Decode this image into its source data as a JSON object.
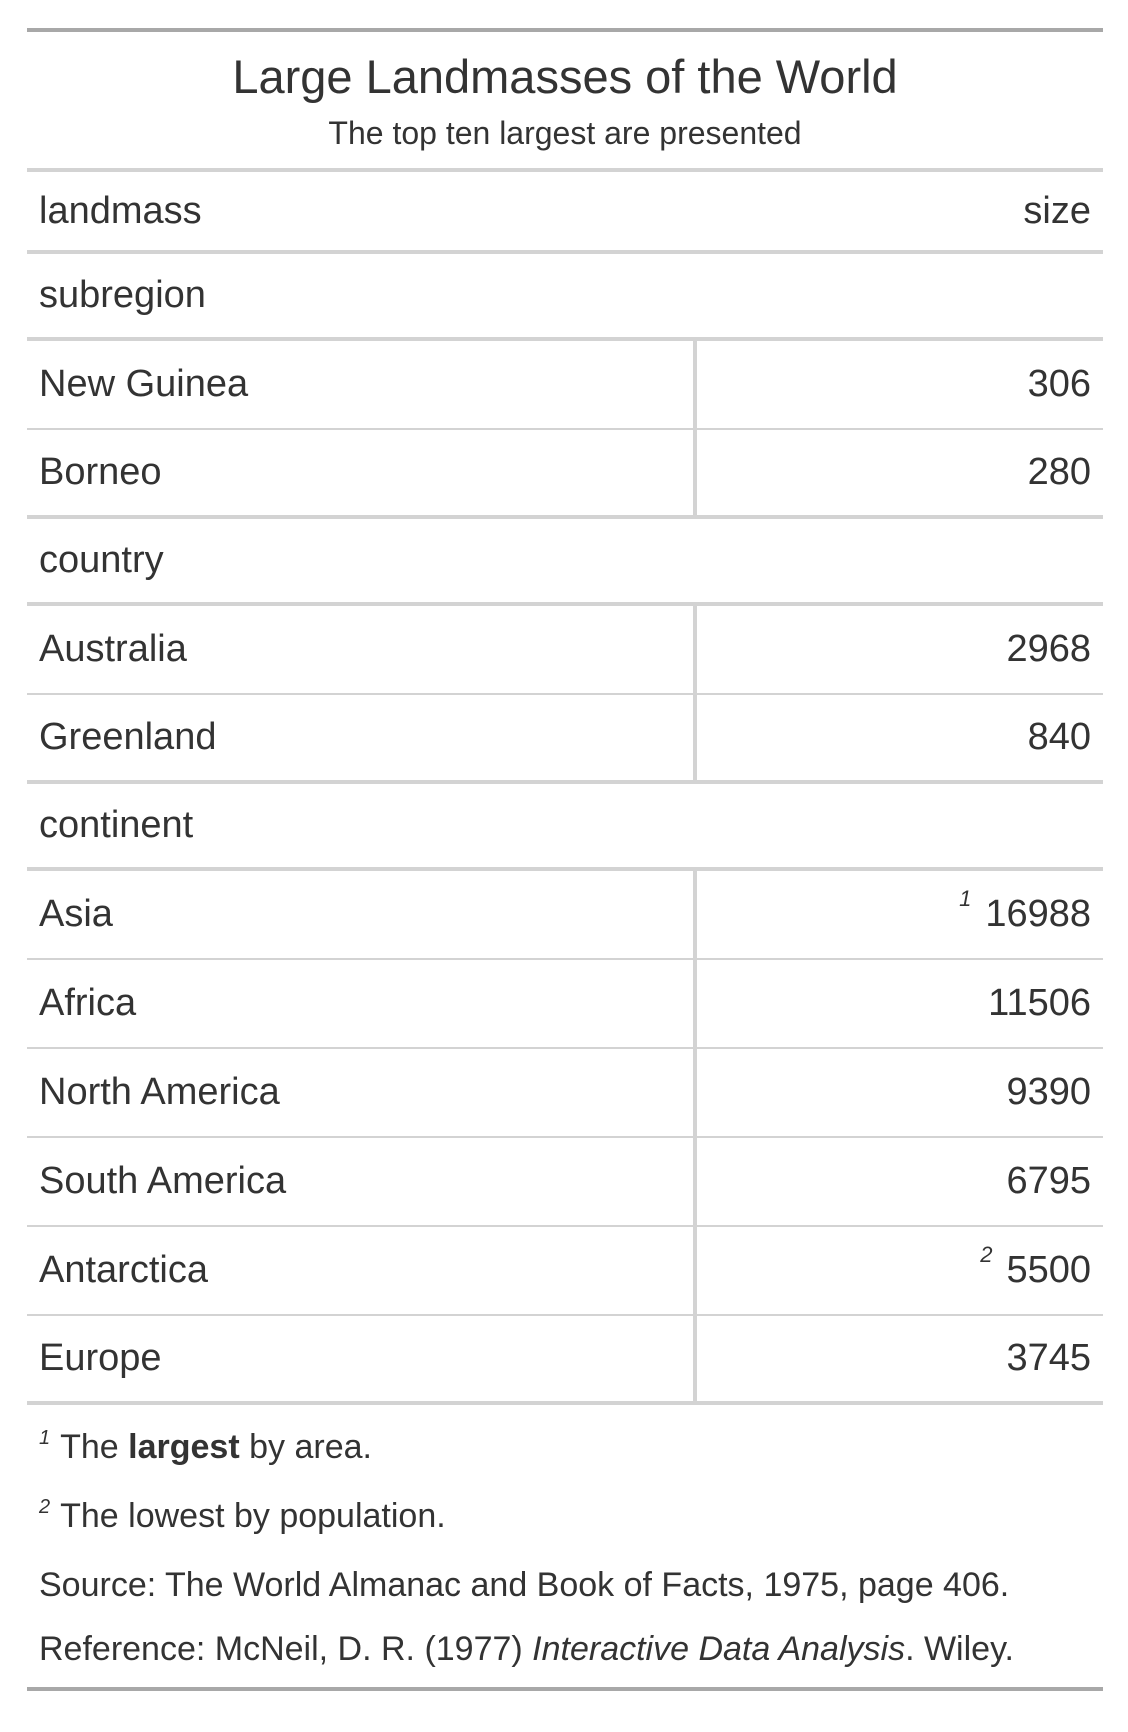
{
  "title": "Large Landmasses of the World",
  "subtitle": "The top ten largest are presented",
  "columns": {
    "name": "landmass",
    "size": "size"
  },
  "groups": [
    {
      "label": "subregion",
      "rows": [
        {
          "name": "New Guinea",
          "size": "306",
          "mark": ""
        },
        {
          "name": "Borneo",
          "size": "280",
          "mark": ""
        }
      ]
    },
    {
      "label": "country",
      "rows": [
        {
          "name": "Australia",
          "size": "2968",
          "mark": ""
        },
        {
          "name": "Greenland",
          "size": "840",
          "mark": ""
        }
      ]
    },
    {
      "label": "continent",
      "rows": [
        {
          "name": "Asia",
          "size": "16988",
          "mark": "1"
        },
        {
          "name": "Africa",
          "size": "11506",
          "mark": ""
        },
        {
          "name": "North America",
          "size": "9390",
          "mark": ""
        },
        {
          "name": "South America",
          "size": "6795",
          "mark": ""
        },
        {
          "name": "Antarctica",
          "size": "5500",
          "mark": "2"
        },
        {
          "name": "Europe",
          "size": "3745",
          "mark": ""
        }
      ]
    }
  ],
  "footnotes": {
    "fn1": {
      "mark": "1",
      "pre": "The ",
      "bold": "largest",
      "post": " by area."
    },
    "fn2": {
      "mark": "2",
      "text": "The lowest by population."
    }
  },
  "source": "Source: The World Almanac and Book of Facts, 1975, page 406.",
  "reference": {
    "pre": "Reference: McNeil, D. R. (1977) ",
    "italic": "Interactive Data Analysis",
    "post": ". Wiley."
  }
}
